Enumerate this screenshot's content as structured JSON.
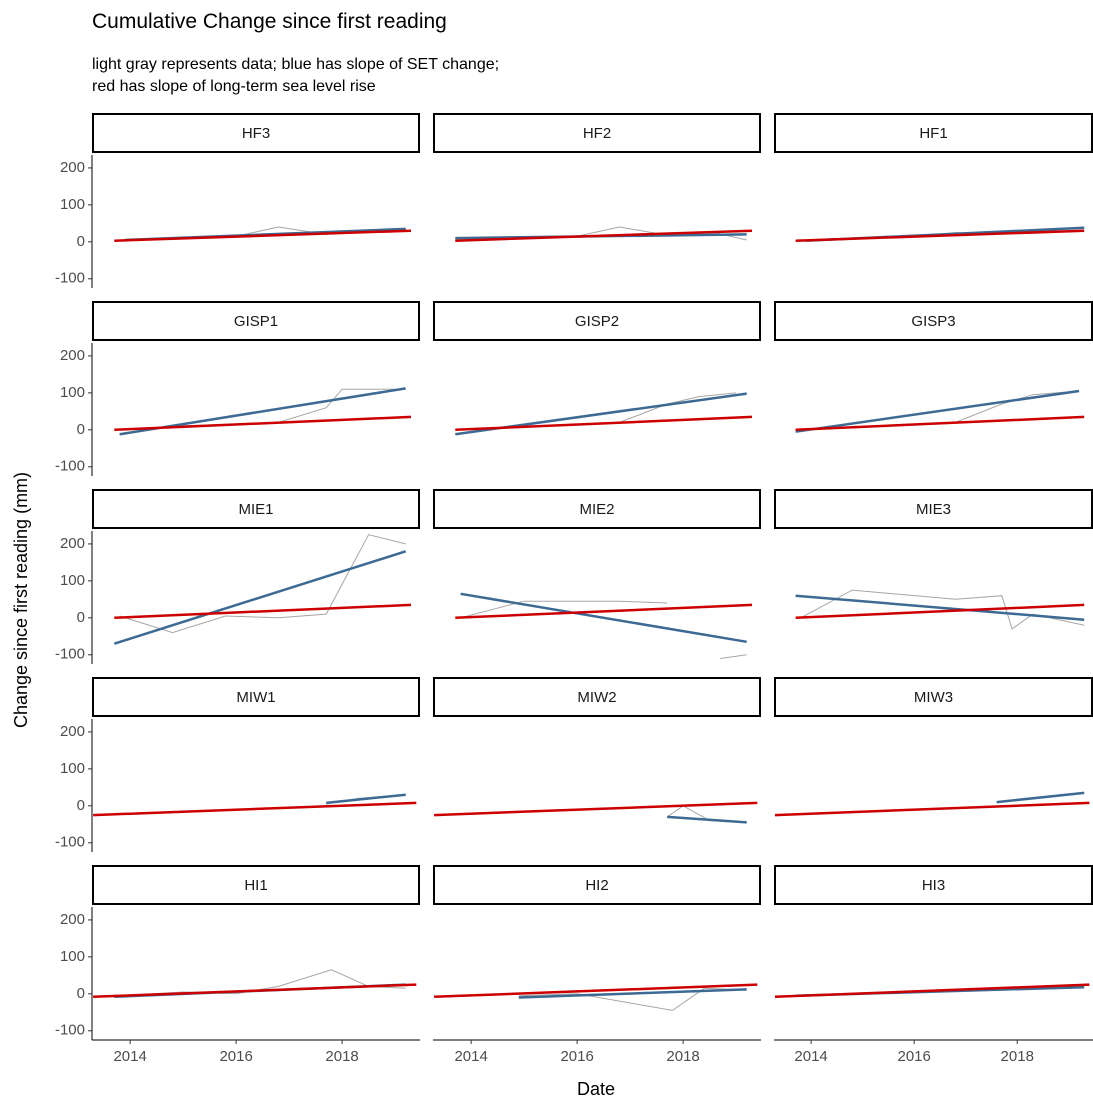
{
  "chart_data": {
    "type": "line",
    "title": "Cumulative Change since first reading",
    "subtitle": "light gray represents data; blue has slope of SET change;\nred has slope of long-term sea level rise",
    "xlabel": "Date",
    "ylabel": "Change since first reading (mm)",
    "xlim": [
      2013.28,
      2019.47
    ],
    "xticks": [
      2014,
      2016,
      2018
    ],
    "ylim": [
      -125,
      235
    ],
    "yticks": [
      -100,
      0,
      100,
      200
    ],
    "panels": [
      {
        "title": "HF3",
        "series": [
          {
            "color": "#a6a6a6",
            "x": [
              2013.9,
              2014.9,
              2016,
              2016.8,
              2017.7,
              2018.6,
              2019.2
            ],
            "values": [
              5,
              10,
              15,
              40,
              20,
              30,
              35
            ]
          },
          {
            "color": "#3d6a93",
            "x": [
              2013.9,
              2019.2
            ],
            "values": [
              5,
              35
            ]
          },
          {
            "color": "#cc0000",
            "x": [
              2013.7,
              2019.3
            ],
            "values": [
              3,
              30
            ]
          }
        ]
      },
      {
        "title": "HF2",
        "series": [
          {
            "color": "#a6a6a6",
            "x": [
              2013.7,
              2014.8,
              2016,
              2016.8,
              2017.7,
              2018.6,
              2019.2
            ],
            "values": [
              5,
              12,
              15,
              40,
              18,
              25,
              5
            ]
          },
          {
            "color": "#3d6a93",
            "x": [
              2013.7,
              2019.2
            ],
            "values": [
              10,
              20
            ]
          },
          {
            "color": "#cc0000",
            "x": [
              2013.7,
              2019.3
            ],
            "values": [
              3,
              30
            ]
          }
        ]
      },
      {
        "title": "HF1",
        "series": [
          {
            "color": "#a6a6a6",
            "x": [
              2013.9,
              2014.9,
              2016,
              2016.8,
              2017.7,
              2018.6,
              2019.3
            ],
            "values": [
              3,
              10,
              15,
              25,
              22,
              30,
              40
            ]
          },
          {
            "color": "#3d6a93",
            "x": [
              2013.9,
              2019.3
            ],
            "values": [
              3,
              38
            ]
          },
          {
            "color": "#cc0000",
            "x": [
              2013.7,
              2019.3
            ],
            "values": [
              3,
              30
            ]
          }
        ]
      },
      {
        "title": "GISP1",
        "series": [
          {
            "color": "#a6a6a6",
            "x": [
              2013.8,
              2014.8,
              2016.8,
              2017.7,
              2018,
              2019
            ],
            "values": [
              -10,
              10,
              20,
              60,
              110,
              110
            ]
          },
          {
            "color": "#3d6a93",
            "x": [
              2013.8,
              2019.2
            ],
            "values": [
              -12,
              112
            ]
          },
          {
            "color": "#cc0000",
            "x": [
              2013.7,
              2019.3
            ],
            "values": [
              0,
              35
            ]
          }
        ]
      },
      {
        "title": "GISP2",
        "series": [
          {
            "color": "#a6a6a6",
            "x": [
              2013.7,
              2016.8,
              2017.7,
              2018.3,
              2019
            ],
            "values": [
              0,
              20,
              70,
              90,
              100
            ]
          },
          {
            "color": "#3d6a93",
            "x": [
              2013.7,
              2019.2
            ],
            "values": [
              -12,
              98
            ]
          },
          {
            "color": "#cc0000",
            "x": [
              2013.7,
              2019.3
            ],
            "values": [
              0,
              35
            ]
          }
        ]
      },
      {
        "title": "GISP3",
        "series": [
          {
            "color": "#a6a6a6",
            "x": [
              2013.7,
              2016.8,
              2017.7,
              2018.3,
              2019.2
            ],
            "values": [
              0,
              20,
              70,
              95,
              105
            ]
          },
          {
            "color": "#3d6a93",
            "x": [
              2013.7,
              2019.2
            ],
            "values": [
              -5,
              105
            ]
          },
          {
            "color": "#cc0000",
            "x": [
              2013.7,
              2019.3
            ],
            "values": [
              0,
              35
            ]
          }
        ]
      },
      {
        "title": "MIE1",
        "series": [
          {
            "color": "#a6a6a6",
            "x": [
              2013.8,
              2014.8,
              2015.8,
              2016.8,
              2017.7,
              2018.5,
              2019.2
            ],
            "values": [
              5,
              -40,
              5,
              0,
              10,
              225,
              200
            ]
          },
          {
            "color": "#3d6a93",
            "x": [
              2013.7,
              2019.2
            ],
            "values": [
              -70,
              180
            ]
          },
          {
            "color": "#cc0000",
            "x": [
              2013.7,
              2019.3
            ],
            "values": [
              0,
              35
            ]
          }
        ]
      },
      {
        "title": "MIE2",
        "series": [
          {
            "color": "#a6a6a6",
            "x": [
              2013.8,
              2015,
              2016.8,
              2017.7,
              2018,
              2018.7,
              2019.2
            ],
            "values": [
              0,
              45,
              45,
              40,
              null,
              -110,
              -100
            ]
          },
          {
            "color": "#3d6a93",
            "x": [
              2013.8,
              2019.2
            ],
            "values": [
              65,
              -65
            ]
          },
          {
            "color": "#cc0000",
            "x": [
              2013.7,
              2019.3
            ],
            "values": [
              0,
              35
            ]
          }
        ]
      },
      {
        "title": "MIE3",
        "series": [
          {
            "color": "#a6a6a6",
            "x": [
              2013.8,
              2014.8,
              2016.8,
              2017.7,
              2017.9,
              2018.3,
              2019.3
            ],
            "values": [
              0,
              75,
              50,
              60,
              -30,
              10,
              -20
            ]
          },
          {
            "color": "#3d6a93",
            "x": [
              2013.7,
              2019.3
            ],
            "values": [
              60,
              -5
            ]
          },
          {
            "color": "#cc0000",
            "x": [
              2013.7,
              2019.3
            ],
            "values": [
              0,
              35
            ]
          }
        ]
      },
      {
        "title": "MIW1",
        "series": [
          {
            "color": "#a6a6a6",
            "x": [
              2017.7,
              2018.3,
              2019.2
            ],
            "values": [
              5,
              20,
              30
            ]
          },
          {
            "color": "#3d6a93",
            "x": [
              2017.7,
              2019.2
            ],
            "values": [
              8,
              30
            ]
          },
          {
            "color": "#cc0000",
            "x": [
              2013.3,
              2019.4
            ],
            "values": [
              -25,
              8
            ]
          }
        ]
      },
      {
        "title": "MIW2",
        "series": [
          {
            "color": "#a6a6a6",
            "x": [
              2017.7,
              2018,
              2018.5,
              2019.2
            ],
            "values": [
              -30,
              0,
              -40,
              -45
            ]
          },
          {
            "color": "#3d6a93",
            "x": [
              2017.7,
              2019.2
            ],
            "values": [
              -30,
              -45
            ]
          },
          {
            "color": "#cc0000",
            "x": [
              2013.3,
              2019.4
            ],
            "values": [
              -25,
              8
            ]
          }
        ]
      },
      {
        "title": "MIW3",
        "series": [
          {
            "color": "#a6a6a6",
            "x": [
              2017.6,
              2018.3,
              2019.3
            ],
            "values": [
              10,
              20,
              35
            ]
          },
          {
            "color": "#3d6a93",
            "x": [
              2017.6,
              2019.3
            ],
            "values": [
              10,
              35
            ]
          },
          {
            "color": "#cc0000",
            "x": [
              2013.3,
              2019.4
            ],
            "values": [
              -25,
              8
            ]
          }
        ]
      },
      {
        "title": "HI1",
        "series": [
          {
            "color": "#a6a6a6",
            "x": [
              2013.8,
              2015,
              2016,
              2016.8,
              2017.8,
              2018.5,
              2019.2
            ],
            "values": [
              -5,
              5,
              0,
              20,
              65,
              20,
              15
            ]
          },
          {
            "color": "#3d6a93",
            "x": [
              2013.7,
              2019.2
            ],
            "values": [
              -8,
              25
            ]
          },
          {
            "color": "#cc0000",
            "x": [
              2013.3,
              2019.4
            ],
            "values": [
              -8,
              25
            ]
          }
        ]
      },
      {
        "title": "HI2",
        "series": [
          {
            "color": "#a6a6a6",
            "x": [
              2014.9,
              2016,
              2017.8,
              2018.4,
              2019.2
            ],
            "values": [
              -5,
              0,
              -45,
              15,
              10
            ]
          },
          {
            "color": "#3d6a93",
            "x": [
              2014.9,
              2019.2
            ],
            "values": [
              -10,
              12
            ]
          },
          {
            "color": "#cc0000",
            "x": [
              2013.3,
              2019.4
            ],
            "values": [
              -8,
              25
            ]
          }
        ]
      },
      {
        "title": "HI3",
        "series": [
          {
            "color": "#a6a6a6",
            "x": [
              2013.7,
              2016,
              2017.8,
              2019.3
            ],
            "values": [
              -5,
              5,
              12,
              18
            ]
          },
          {
            "color": "#3d6a93",
            "x": [
              2013.7,
              2019.3
            ],
            "values": [
              -5,
              18
            ]
          },
          {
            "color": "#cc0000",
            "x": [
              2013.3,
              2019.4
            ],
            "values": [
              -8,
              25
            ]
          }
        ]
      }
    ]
  }
}
